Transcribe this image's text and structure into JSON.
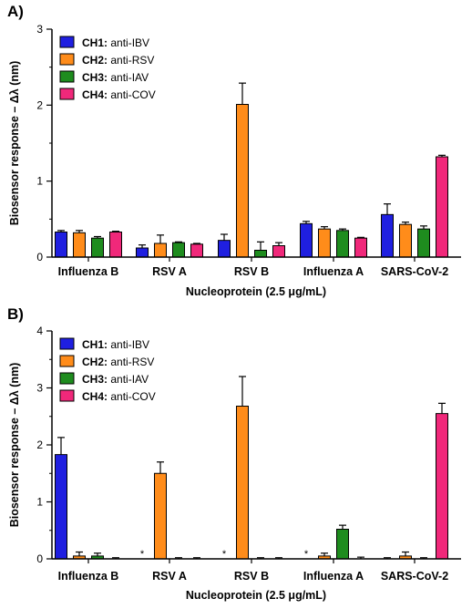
{
  "chart_data": [
    {
      "panel_label": "A)",
      "type": "bar",
      "categories": [
        "Influenza B",
        "RSV A",
        "RSV B",
        "Influenza A",
        "SARS-CoV-2"
      ],
      "series": [
        {
          "name": "CH1: anti-IBV",
          "name_bold": "CH1:",
          "name_rest": " anti-IBV",
          "color": "#1f1fe0",
          "values": [
            0.33,
            0.12,
            0.22,
            0.44,
            0.56
          ],
          "errors": [
            0.02,
            0.04,
            0.08,
            0.03,
            0.14
          ]
        },
        {
          "name": "CH2: anti-RSV",
          "name_bold": "CH2:",
          "name_rest": " anti-RSV",
          "color": "#ff8c1a",
          "values": [
            0.32,
            0.18,
            2.01,
            0.37,
            0.43
          ],
          "errors": [
            0.03,
            0.11,
            0.28,
            0.03,
            0.03
          ]
        },
        {
          "name": "CH3: anti-IAV",
          "name_bold": "CH3:",
          "name_rest": " anti-IAV",
          "color": "#1e8c1e",
          "values": [
            0.25,
            0.19,
            0.09,
            0.35,
            0.37
          ],
          "errors": [
            0.02,
            0.01,
            0.11,
            0.02,
            0.04
          ]
        },
        {
          "name": "CH4: anti-COV",
          "name_bold": "CH4:",
          "name_rest": " anti-COV",
          "color": "#f0287a",
          "values": [
            0.33,
            0.17,
            0.15,
            0.25,
            1.32
          ],
          "errors": [
            0.01,
            0.01,
            0.04,
            0.01,
            0.02
          ]
        }
      ],
      "xlabel": "Nucleoprotein (2.5 μg/mL)",
      "ylabel": "Biosensor response – Δλ (nm)",
      "ylim": [
        0,
        3
      ],
      "yticks": [
        "0",
        "1",
        "2",
        "3"
      ],
      "markers": [],
      "legend": "top-left",
      "grid": false
    },
    {
      "panel_label": "B)",
      "type": "bar",
      "categories": [
        "Influenza B",
        "RSV A",
        "RSV B",
        "Influenza A",
        "SARS-CoV-2"
      ],
      "series": [
        {
          "name": "CH1: anti-IBV",
          "name_bold": "CH1:",
          "name_rest": " anti-IBV",
          "color": "#1f1fe0",
          "values": [
            1.83,
            0.0,
            0.0,
            0.0,
            0.0
          ],
          "errors": [
            0.3,
            0.0,
            0.0,
            0.0,
            0.02
          ]
        },
        {
          "name": "CH2: anti-RSV",
          "name_bold": "CH2:",
          "name_rest": " anti-RSV",
          "color": "#ff8c1a",
          "values": [
            0.05,
            1.5,
            2.68,
            0.05,
            0.05
          ],
          "errors": [
            0.07,
            0.2,
            0.52,
            0.05,
            0.07
          ]
        },
        {
          "name": "CH3: anti-IAV",
          "name_bold": "CH3:",
          "name_rest": " anti-IAV",
          "color": "#1e8c1e",
          "values": [
            0.05,
            0.0,
            0.0,
            0.52,
            0.0
          ],
          "errors": [
            0.05,
            0.02,
            0.02,
            0.07,
            0.02
          ]
        },
        {
          "name": "CH4: anti-COV",
          "name_bold": "CH4:",
          "name_rest": " anti-COV",
          "color": "#f0287a",
          "values": [
            0.0,
            0.0,
            0.0,
            0.0,
            2.55
          ],
          "errors": [
            0.02,
            0.02,
            0.02,
            0.03,
            0.18
          ]
        }
      ],
      "xlabel": "Nucleoprotein (2.5 μg/mL)",
      "ylabel": "Biosensor response – Δλ (nm)",
      "ylim": [
        0,
        4
      ],
      "yticks": [
        "0",
        "1",
        "2",
        "3",
        "4"
      ],
      "markers": [
        {
          "category_index": 1,
          "series_index": 0,
          "text": "*"
        },
        {
          "category_index": 2,
          "series_index": 0,
          "text": "*"
        },
        {
          "category_index": 3,
          "series_index": 0,
          "text": "*"
        }
      ],
      "legend": "top-left",
      "grid": false
    }
  ]
}
